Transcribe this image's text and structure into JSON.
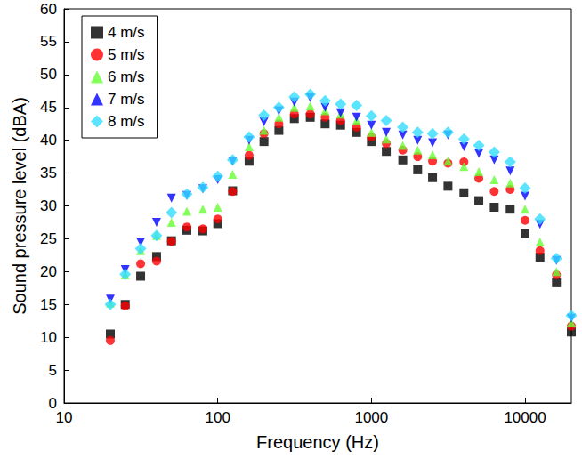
{
  "chart_data": {
    "type": "scatter",
    "x_label": "Frequency (Hz)",
    "y_label": "Sound pressure level (dBA)",
    "log": "x",
    "grid": false,
    "legend": "upper left",
    "xlim": [
      10,
      20000
    ],
    "xticks": [
      10,
      100,
      1000,
      10000
    ],
    "ylim": [
      0,
      60
    ],
    "yticks": [
      0,
      5,
      10,
      15,
      20,
      25,
      30,
      35,
      40,
      45,
      50,
      55,
      60
    ],
    "x": [
      20,
      25,
      31.5,
      40,
      50,
      63,
      80,
      100,
      125,
      160,
      200,
      250,
      315,
      400,
      500,
      630,
      800,
      1000,
      1250,
      1600,
      2000,
      2500,
      3150,
      4000,
      5000,
      6300,
      8000,
      10000,
      12500,
      16000,
      20000
    ],
    "series": [
      {
        "name": "4 m/s",
        "color": "#000000",
        "marker": "square",
        "values": [
          10.5,
          15,
          19.3,
          22.3,
          24.7,
          26.3,
          26.2,
          27.3,
          32.3,
          36.8,
          39.8,
          41.5,
          43.3,
          43.5,
          42.5,
          42.3,
          41.2,
          39.8,
          38.3,
          37,
          35.5,
          34.3,
          33,
          32,
          30.8,
          29.8,
          29.5,
          25.8,
          22.2,
          18.3,
          10.8
        ]
      },
      {
        "name": "5 m/s",
        "color": "#ff0000",
        "marker": "circle",
        "values": [
          9.5,
          14.8,
          21.2,
          21.6,
          24.6,
          26.8,
          26.5,
          28,
          32.2,
          37.7,
          41,
          42.5,
          44,
          44,
          43.5,
          43,
          42,
          40.5,
          39.5,
          38.5,
          37.5,
          36.8,
          36.5,
          36.7,
          34.2,
          32.2,
          32.5,
          27.8,
          23.2,
          19.5,
          11.7
        ]
      },
      {
        "name": "6 m/s",
        "color": "#66ff33",
        "marker": "triangle",
        "values": [
          15.2,
          19.5,
          23.2,
          25.5,
          27.5,
          29.2,
          29.5,
          29.8,
          34.8,
          39,
          41.5,
          43.5,
          45,
          45.2,
          44.5,
          44,
          43,
          41.2,
          40.2,
          39.2,
          38.5,
          37.8,
          36.8,
          36,
          35.2,
          34,
          33.5,
          29.5,
          24.5,
          20,
          12.2
        ]
      },
      {
        "name": "7 m/s",
        "color": "#0000ff",
        "marker": "triangle_down",
        "values": [
          15.8,
          20.3,
          24.5,
          27.5,
          31.2,
          31.6,
          32.6,
          34,
          36.8,
          40,
          42.8,
          44.5,
          45.8,
          46.5,
          45,
          44.2,
          43.5,
          42.3,
          41.2,
          40.8,
          40,
          39.6,
          40.8,
          39,
          38,
          37,
          35.3,
          31.5,
          27.2,
          21.7,
          12.9
        ]
      },
      {
        "name": "8 m/s",
        "color": "#33ddff",
        "marker": "diamond",
        "values": [
          15,
          19.6,
          23.5,
          25.5,
          29,
          31.8,
          32.8,
          34.5,
          37,
          40.5,
          43.8,
          45,
          46.6,
          47,
          46,
          45.5,
          45.3,
          43.7,
          43,
          42,
          41.2,
          41,
          41.2,
          40.2,
          39.2,
          38.2,
          36.7,
          32.7,
          28,
          22,
          13.3
        ]
      }
    ]
  }
}
